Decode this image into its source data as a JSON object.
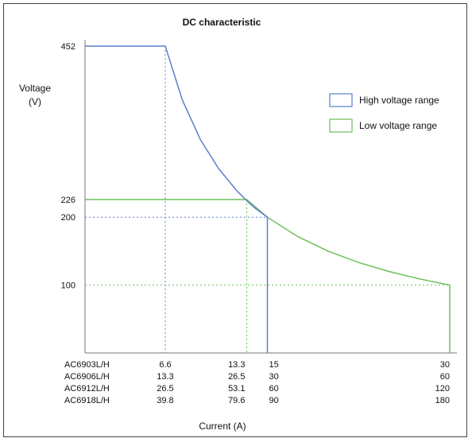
{
  "colors": {
    "high": "#5b7fcf",
    "low": "#6bbf59",
    "axis": "#777777",
    "frame": "#444444"
  },
  "chart_data": {
    "type": "line",
    "title": "DC characteristic",
    "ylabel_line1": "Voltage",
    "ylabel_line2": "(V)",
    "xlabel": "Current (A)",
    "y_ticks": [
      452,
      226,
      200,
      100
    ],
    "ylim": [
      0,
      452
    ],
    "xlim_ac6903": [
      0,
      30
    ],
    "current_table": {
      "columns_ac6903": [
        6.6,
        13.3,
        15,
        30
      ],
      "rows": [
        {
          "model": "AC6903L/H",
          "values": [
            "6.6",
            "13.3",
            "15",
            "30"
          ]
        },
        {
          "model": "AC6906L/H",
          "values": [
            "13.3",
            "26.5",
            "30",
            "60"
          ]
        },
        {
          "model": "AC6912L/H",
          "values": [
            "26.5",
            "53.1",
            "60",
            "120"
          ]
        },
        {
          "model": "AC6918L/H",
          "values": [
            "39.8",
            "79.6",
            "90",
            "180"
          ]
        }
      ]
    },
    "series": [
      {
        "name": "High voltage range",
        "points_ac6903": [
          [
            0,
            452
          ],
          [
            6.6,
            452
          ],
          [
            8,
            372.9
          ],
          [
            9.5,
            314.0
          ],
          [
            11,
            271.2
          ],
          [
            12.5,
            238.7
          ],
          [
            13.3,
            224.3
          ],
          [
            14,
            213.1
          ],
          [
            15,
            200
          ],
          [
            15,
            0
          ]
        ]
      },
      {
        "name": "Low voltage range",
        "points_ac6903": [
          [
            0,
            226
          ],
          [
            13.3,
            226
          ],
          [
            15,
            200
          ],
          [
            17.5,
            171.4
          ],
          [
            20,
            150
          ],
          [
            22.5,
            133.3
          ],
          [
            25,
            120
          ],
          [
            27.5,
            109.1
          ],
          [
            30,
            100
          ],
          [
            30,
            0
          ]
        ]
      }
    ],
    "guides": [
      {
        "series": "High voltage range",
        "from": [
          6.6,
          452
        ],
        "to": [
          6.6,
          0
        ]
      },
      {
        "series": "High voltage range",
        "from": [
          0,
          200
        ],
        "to": [
          15,
          200
        ]
      },
      {
        "series": "Low voltage range",
        "from": [
          13.3,
          226
        ],
        "to": [
          13.3,
          0
        ]
      },
      {
        "series": "Low voltage range",
        "from": [
          0,
          100
        ],
        "to": [
          30,
          100
        ]
      }
    ],
    "legend": {
      "position": "top-right"
    },
    "grid": false
  }
}
